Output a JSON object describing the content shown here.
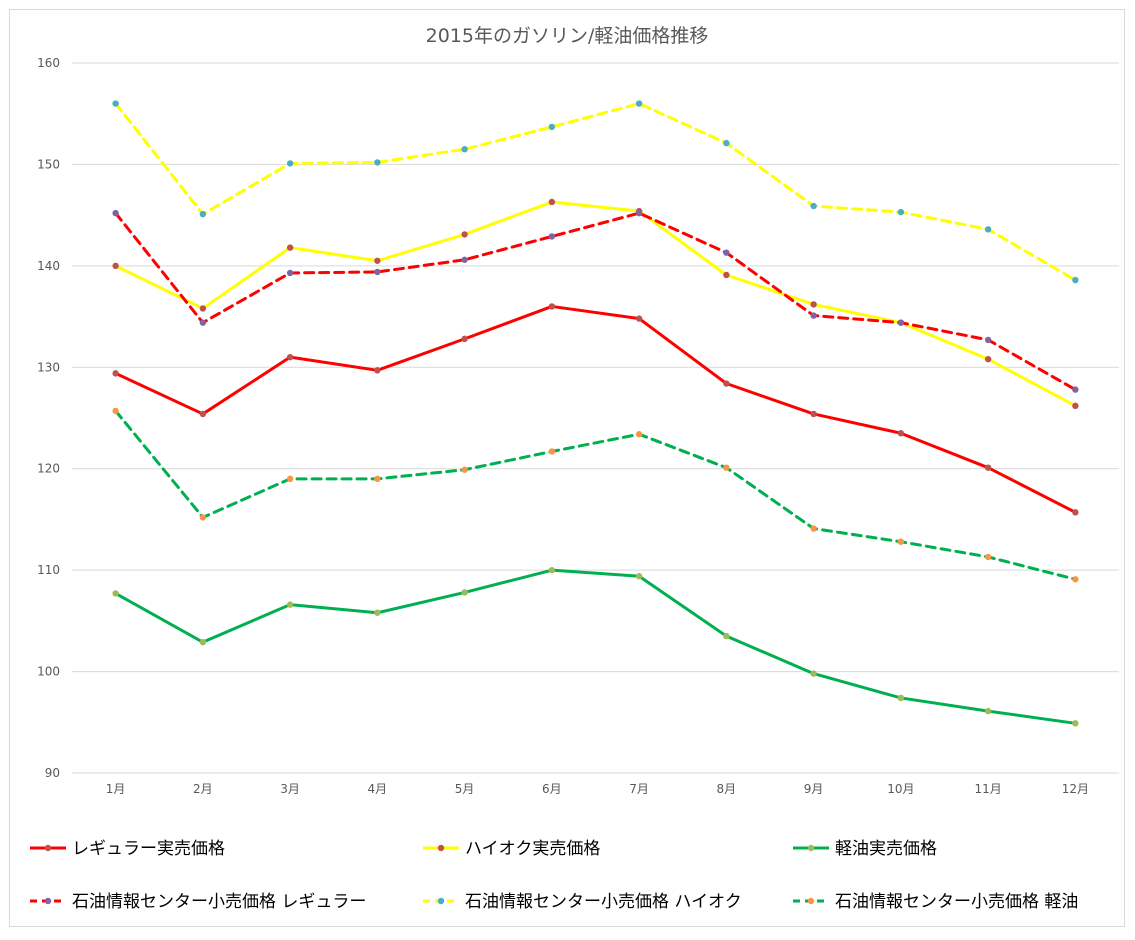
{
  "chart_data": {
    "type": "line",
    "title": "2015年のガソリン/軽油価格推移",
    "xlabel": "",
    "ylabel": "",
    "categories": [
      "1月",
      "2月",
      "3月",
      "4月",
      "5月",
      "6月",
      "7月",
      "8月",
      "9月",
      "10月",
      "11月",
      "12月"
    ],
    "ylim": [
      90,
      160
    ],
    "yticks": [
      90,
      100,
      110,
      120,
      130,
      140,
      150,
      160
    ],
    "grid": true,
    "legend_position": "bottom",
    "series": [
      {
        "name": "レギュラー実売価格",
        "color": "#ff0000",
        "dash": false,
        "marker_color": "#c0504d",
        "values": [
          129.4,
          125.4,
          131.0,
          129.7,
          132.8,
          136.0,
          134.8,
          128.4,
          125.4,
          123.5,
          120.1,
          115.7
        ]
      },
      {
        "name": "ハイオク実売価格",
        "color": "#ffff00",
        "dash": false,
        "marker_color": "#c0504d",
        "values": [
          140.0,
          135.8,
          141.8,
          140.5,
          143.1,
          146.3,
          145.4,
          139.1,
          136.2,
          134.4,
          130.8,
          126.2
        ]
      },
      {
        "name": "軽油実売価格",
        "color": "#00b050",
        "dash": false,
        "marker_color": "#9bbb59",
        "values": [
          107.7,
          102.9,
          106.6,
          105.8,
          107.8,
          110.0,
          109.4,
          103.5,
          99.8,
          97.4,
          96.1,
          94.9
        ]
      },
      {
        "name": "石油情報センター小売価格 レギュラー",
        "color": "#ff0000",
        "dash": true,
        "marker_color": "#8064a2",
        "values": [
          145.2,
          134.4,
          139.3,
          139.4,
          140.6,
          142.9,
          145.2,
          141.3,
          135.1,
          134.4,
          132.7,
          127.8
        ]
      },
      {
        "name": "石油情報センター小売価格 ハイオク",
        "color": "#ffff00",
        "dash": true,
        "marker_color": "#4bacc6",
        "values": [
          156.0,
          145.1,
          150.1,
          150.2,
          151.5,
          153.7,
          156.0,
          152.1,
          145.9,
          145.3,
          143.6,
          138.6
        ]
      },
      {
        "name": "石油情報センター小売価格 軽油",
        "color": "#00b050",
        "dash": true,
        "marker_color": "#f79646",
        "values": [
          125.7,
          115.2,
          119.0,
          119.0,
          119.9,
          121.7,
          123.4,
          120.1,
          114.1,
          112.8,
          111.3,
          109.1
        ]
      }
    ]
  }
}
